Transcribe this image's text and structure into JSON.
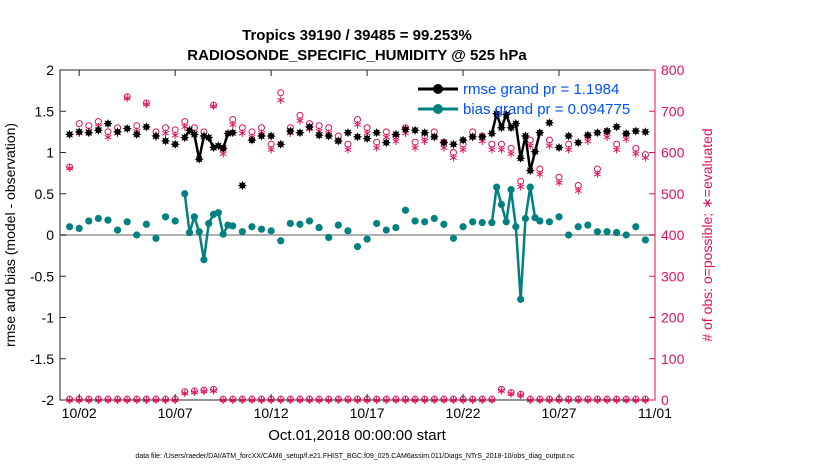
{
  "chart_data": {
    "type": "line",
    "title_line1": "Tropics 39190 / 39485 = 99.253%",
    "title_line2": "RADIOSONDE_SPECIFIC_HUMIDITY @ 525 hPa",
    "xlabel": "Oct.01,2018 00:00:00 start",
    "ylabel_left": "rmse and bias (model - observation)",
    "ylabel_right": "# of obs: o=possible; ∗=evaluated",
    "footer": "data file: /Users/raeder/DAI/ATM_forcXX/CAM6_setup/f.e21.FHIST_BGC.f09_025.CAM6assim.011/Diags_NTrS_2018-10/obs_diag_output.nc",
    "xlim": [
      0.5,
      31.5
    ],
    "ylim_left": [
      -2,
      2
    ],
    "ylim_right": [
      0,
      800
    ],
    "x_ticks": [
      1.5,
      6.5,
      11.5,
      16.5,
      21.5,
      26.5,
      31.5
    ],
    "x_tick_labels": [
      "10/02",
      "10/07",
      "10/12",
      "10/17",
      "10/22",
      "10/27",
      "11/01"
    ],
    "y_ticks_left": [
      -2,
      -1.5,
      -1,
      -0.5,
      0,
      0.5,
      1,
      1.5,
      2
    ],
    "y_tick_labels_left": [
      "-2",
      "-1.5",
      "-1",
      "-0.5",
      "0",
      "0.5",
      "1",
      "1.5",
      "2"
    ],
    "y_ticks_right": [
      0,
      100,
      200,
      300,
      400,
      500,
      600,
      700,
      800
    ],
    "y_tick_labels_right": [
      "0",
      "100",
      "200",
      "300",
      "400",
      "500",
      "600",
      "700",
      "800"
    ],
    "legend": {
      "placement": "top-right",
      "rmse_label": "rmse grand pr = 1.1984",
      "bias_label": "bias grand pr = 0.094775"
    },
    "colors": {
      "rmse": "#000000",
      "bias": "#008080",
      "obs": "#e0105a",
      "legend_text": "#0050ff",
      "zero_line": "#b0b0b0"
    },
    "series": [
      {
        "name": "rmse",
        "x": [
          1,
          1.5,
          2,
          2.5,
          3,
          3.5,
          4,
          4.5,
          5,
          5.5,
          6,
          6.5,
          7,
          7.25,
          7.5,
          7.75,
          8,
          8.25,
          8.5,
          8.75,
          9,
          9.25,
          9.5,
          10,
          10.5,
          11,
          11.5,
          12,
          12.5,
          13,
          13.5,
          14,
          14.5,
          15,
          15.5,
          16,
          16.5,
          17,
          17.5,
          18,
          18.5,
          19,
          19.5,
          20,
          20.5,
          21,
          21.5,
          22,
          22.5,
          23,
          23.25,
          23.5,
          23.75,
          24,
          24.25,
          24.5,
          24.75,
          25,
          25.25,
          25.5,
          26,
          26.5,
          27,
          27.5,
          28,
          28.5,
          29,
          29.5,
          30,
          30.5,
          31
        ],
        "values": [
          1.22,
          1.25,
          1.24,
          1.27,
          1.35,
          1.25,
          1.29,
          1.22,
          1.31,
          1.2,
          1.14,
          1.1,
          1.18,
          1.27,
          1.22,
          0.92,
          1.2,
          1.18,
          1.06,
          1.08,
          1.05,
          1.23,
          1.24,
          0.6,
          1.15,
          1.2,
          1.2,
          1.1,
          1.26,
          1.24,
          1.31,
          1.21,
          1.2,
          1.14,
          1.24,
          1.19,
          1.17,
          1.24,
          1.12,
          1.22,
          1.28,
          1.27,
          1.24,
          1.19,
          1.12,
          1.1,
          1.15,
          1.19,
          1.19,
          1.23,
          1.47,
          1.3,
          1.46,
          1.3,
          1.35,
          0.93,
          1.2,
          0.78,
          1.01,
          1.24,
          1.36,
          1.06,
          1.2,
          1.12,
          1.21,
          1.24,
          1.26,
          1.31,
          1.23,
          1.26,
          1.25
        ]
      },
      {
        "name": "bias",
        "x": [
          1,
          1.5,
          2,
          2.5,
          3,
          3.5,
          4,
          4.5,
          5,
          5.5,
          6,
          6.5,
          7,
          7.25,
          7.5,
          7.75,
          8,
          8.25,
          8.5,
          8.75,
          9,
          9.25,
          9.5,
          10,
          10.5,
          11,
          11.5,
          12,
          12.5,
          13,
          13.5,
          14,
          14.5,
          15,
          15.5,
          16,
          16.5,
          17,
          17.5,
          18,
          18.5,
          19,
          19.5,
          20,
          20.5,
          21,
          21.5,
          22,
          22.5,
          23,
          23.25,
          23.5,
          23.75,
          24,
          24.25,
          24.5,
          24.75,
          25,
          25.25,
          25.5,
          26,
          26.5,
          27,
          27.5,
          28,
          28.5,
          29,
          29.5,
          30,
          30.5,
          31
        ],
        "values": [
          0.1,
          0.08,
          0.17,
          0.2,
          0.18,
          0.06,
          0.16,
          0,
          0.13,
          -0.04,
          0.22,
          0.17,
          0.5,
          0.03,
          0.22,
          0.04,
          -0.3,
          0.14,
          0.25,
          0.27,
          0.01,
          0.12,
          0.11,
          0.04,
          0.1,
          0.07,
          0.05,
          -0.07,
          0.14,
          0.13,
          0.17,
          0.09,
          -0.03,
          0.12,
          0.05,
          -0.14,
          -0.05,
          0.14,
          0.06,
          0.09,
          0.3,
          0.17,
          0.16,
          0.2,
          0.13,
          -0.04,
          0.1,
          0.16,
          0.15,
          0.15,
          0.58,
          0.37,
          0.16,
          0.55,
          0.1,
          -0.78,
          0.2,
          0.58,
          0.21,
          0.17,
          0.16,
          0.22,
          0.0,
          0.1,
          0.12,
          0.04,
          0.04,
          0.03,
          0.0,
          0.1,
          -0.06
        ]
      },
      {
        "name": "obs_possible",
        "x": [
          1,
          1.5,
          2,
          2.5,
          3,
          3.5,
          4,
          4.5,
          5,
          5.5,
          6,
          6.5,
          7,
          7.5,
          8,
          8.5,
          9,
          9.5,
          10,
          10.5,
          11,
          11.5,
          12,
          12.5,
          13,
          13.5,
          14,
          14.5,
          15,
          15.5,
          16,
          16.5,
          17,
          17.5,
          18,
          18.5,
          19,
          19.5,
          20,
          20.5,
          21,
          21.5,
          22,
          22.5,
          23,
          23.5,
          24,
          24.5,
          25,
          25.5,
          26,
          26.5,
          27,
          27.5,
          28,
          28.5,
          29,
          29.5,
          30,
          30.5,
          31
        ],
        "values": [
          565,
          670,
          665,
          675,
          650,
          660,
          735,
          665,
          720,
          650,
          660,
          655,
          675,
          660,
          650,
          715,
          610,
          680,
          660,
          650,
          660,
          620,
          745,
          660,
          690,
          670,
          665,
          660,
          640,
          620,
          680,
          660,
          625,
          650,
          640,
          660,
          625,
          640,
          650,
          625,
          600,
          620,
          650,
          640,
          620,
          620,
          610,
          530,
          630,
          560,
          630,
          540,
          620,
          520,
          640,
          560,
          650,
          620,
          645,
          610,
          595
        ]
      },
      {
        "name": "obs_evaluated",
        "x": [
          1,
          1.5,
          2,
          2.5,
          3,
          3.5,
          4,
          4.5,
          5,
          5.5,
          6,
          6.5,
          7,
          7.5,
          8,
          8.5,
          9,
          9.5,
          10,
          10.5,
          11,
          11.5,
          12,
          12.5,
          13,
          13.5,
          14,
          14.5,
          15,
          15.5,
          16,
          16.5,
          17,
          17.5,
          18,
          18.5,
          19,
          19.5,
          20,
          20.5,
          21,
          21.5,
          22,
          22.5,
          23,
          23.5,
          24,
          24.5,
          25,
          25.5,
          26,
          26.5,
          27,
          27.5,
          28,
          28.5,
          29,
          29.5,
          30,
          30.5,
          31
        ],
        "values": [
          565,
          650,
          655,
          665,
          640,
          650,
          735,
          655,
          720,
          640,
          650,
          645,
          665,
          650,
          640,
          715,
          600,
          670,
          650,
          640,
          650,
          610,
          730,
          650,
          680,
          660,
          655,
          650,
          630,
          610,
          670,
          650,
          615,
          640,
          630,
          650,
          615,
          630,
          640,
          615,
          590,
          610,
          640,
          630,
          610,
          610,
          600,
          520,
          620,
          550,
          620,
          530,
          610,
          510,
          630,
          550,
          640,
          610,
          635,
          600,
          590
        ]
      },
      {
        "name": "obs_low_possible",
        "x": [
          1,
          1.5,
          2,
          2.5,
          3,
          3.5,
          4,
          4.5,
          5,
          5.5,
          6,
          6.5,
          7,
          7.5,
          8,
          8.5,
          9,
          9.5,
          10,
          10.5,
          11,
          11.5,
          12,
          12.5,
          13,
          13.5,
          14,
          14.5,
          15,
          15.5,
          16,
          16.5,
          17,
          17.5,
          18,
          18.5,
          19,
          19.5,
          20,
          20.5,
          21,
          21.5,
          22,
          22.5,
          23,
          23.5,
          24,
          24.5,
          25,
          25.5,
          26,
          26.5,
          27,
          27.5,
          28,
          28.5,
          29,
          29.5,
          30,
          30.5,
          31
        ],
        "values": [
          2,
          2,
          2,
          2,
          2,
          2,
          2,
          2,
          2,
          2,
          2,
          2,
          20,
          22,
          24,
          26,
          2,
          2,
          2,
          2,
          2,
          2,
          2,
          2,
          2,
          2,
          2,
          2,
          2,
          2,
          2,
          2,
          2,
          2,
          2,
          2,
          2,
          2,
          2,
          2,
          2,
          2,
          2,
          2,
          2,
          26,
          18,
          14,
          2,
          2,
          2,
          2,
          2,
          2,
          2,
          2,
          2,
          2,
          2,
          2,
          2
        ]
      }
    ]
  }
}
